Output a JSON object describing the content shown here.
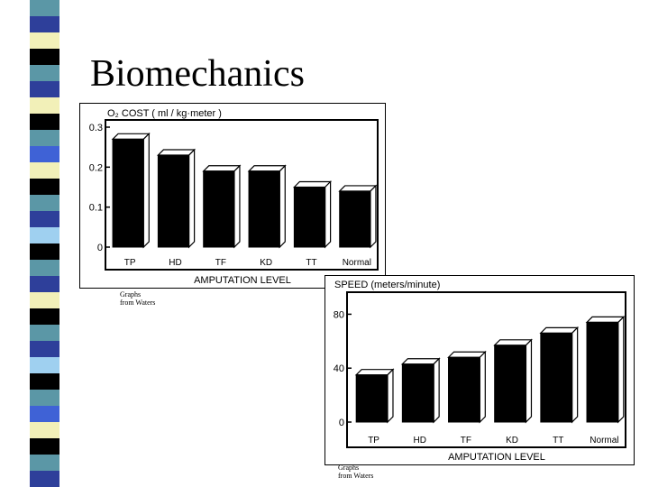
{
  "slide": {
    "title": "Biomechanics",
    "credit_1": "Graphs from Waters",
    "credit_2": "Graphs from Waters"
  },
  "stripe_colors": [
    "#5b97a6",
    "#2e3f9a",
    "#f2f0b8",
    "#000000",
    "#5b97a6",
    "#2e3f9a",
    "#f2f0b8",
    "#000000",
    "#5b97a6",
    "#3f62d6",
    "#f2f0b8",
    "#000000",
    "#5b97a6",
    "#2e3f9a",
    "#9fd0f0",
    "#000000",
    "#5b97a6",
    "#2e3f9a",
    "#f2f0b8",
    "#000000",
    "#5b97a6",
    "#2e3f9a",
    "#9fd0f0",
    "#000000",
    "#5b97a6",
    "#3f62d6",
    "#f2f0b8",
    "#000000",
    "#5b97a6",
    "#2e3f9a"
  ],
  "chart_data": [
    {
      "type": "bar",
      "title": "O₂ COST ( ml / kg·meter )",
      "xlabel": "AMPUTATION LEVEL",
      "categories": [
        "TP",
        "HD",
        "TF",
        "KD",
        "TT",
        "Normal"
      ],
      "values": [
        0.27,
        0.23,
        0.19,
        0.19,
        0.15,
        0.14
      ],
      "ylim": [
        0,
        0.3
      ],
      "yticks": [
        "0",
        "0.1",
        "0.2",
        "0.3"
      ],
      "ytick_values": [
        0,
        0.1,
        0.2,
        0.3
      ],
      "bar_color": "#000000",
      "grid": false
    },
    {
      "type": "bar",
      "title": "SPEED (meters/minute)",
      "xlabel": "AMPUTATION LEVEL",
      "categories": [
        "TP",
        "HD",
        "TF",
        "KD",
        "TT",
        "Normal"
      ],
      "values": [
        35,
        43,
        48,
        57,
        66,
        74
      ],
      "ylim": [
        0,
        95
      ],
      "yticks": [
        "0",
        "40",
        "80"
      ],
      "ytick_values": [
        0,
        40,
        80
      ],
      "bar_color": "#000000",
      "grid": false
    }
  ]
}
